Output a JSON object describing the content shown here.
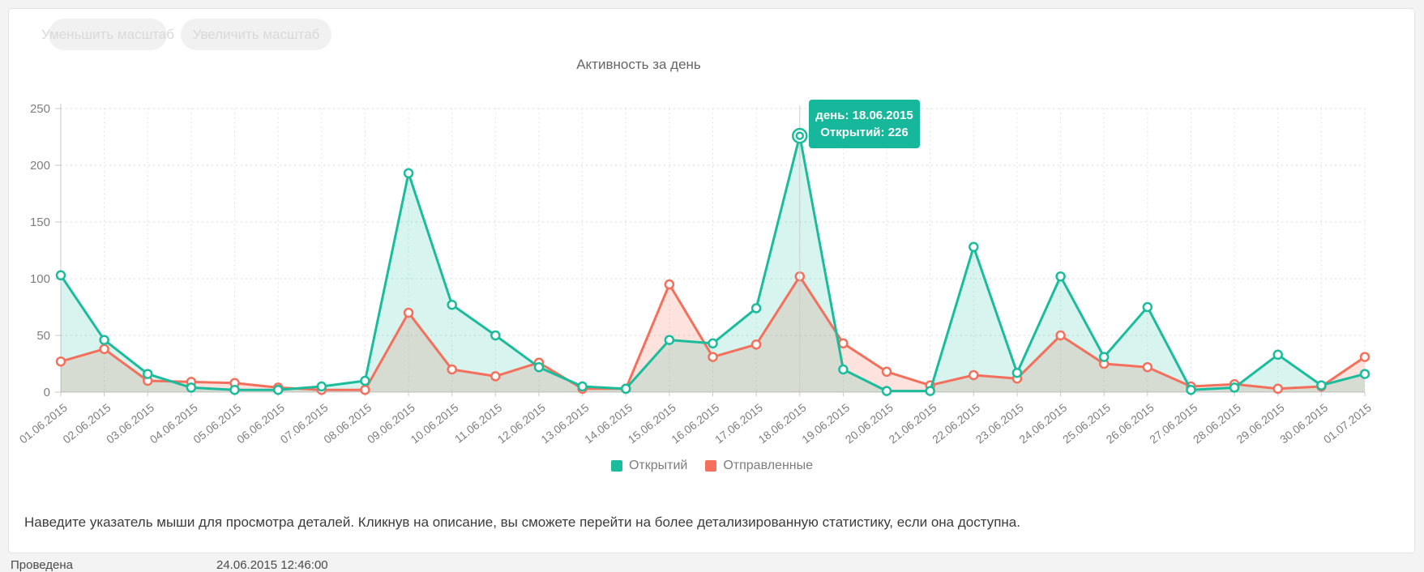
{
  "buttons": {
    "zoom_out": "Уменьшить масштаб",
    "zoom_in": "Увеличить масштаб"
  },
  "chart_data": {
    "type": "line",
    "title": "Активность за день",
    "categories": [
      "01.06.2015",
      "02.06.2015",
      "03.06.2015",
      "04.06.2015",
      "05.06.2015",
      "06.06.2015",
      "07.06.2015",
      "08.06.2015",
      "09.06.2015",
      "10.06.2015",
      "11.06.2015",
      "12.06.2015",
      "13.06.2015",
      "14.06.2015",
      "15.06.2015",
      "16.06.2015",
      "17.06.2015",
      "18.06.2015",
      "19.06.2015",
      "20.06.2015",
      "21.06.2015",
      "22.06.2015",
      "23.06.2015",
      "24.06.2015",
      "25.06.2015",
      "26.06.2015",
      "27.06.2015",
      "28.06.2015",
      "29.06.2015",
      "30.06.2015",
      "01.07.2015"
    ],
    "series": [
      {
        "name": "Открытий",
        "color": "#1abc9c",
        "fill": "rgba(26,188,156,0.17)",
        "values": [
          103,
          46,
          16,
          4,
          2,
          2,
          5,
          10,
          193,
          77,
          50,
          22,
          5,
          3,
          46,
          43,
          74,
          226,
          20,
          1,
          1,
          128,
          17,
          102,
          31,
          75,
          2,
          4,
          33,
          6,
          16
        ]
      },
      {
        "name": "Отправленные",
        "color": "#f4705c",
        "fill": "rgba(244,112,92,0.20)",
        "values": [
          27,
          38,
          10,
          9,
          8,
          4,
          2,
          2,
          70,
          20,
          14,
          26,
          3,
          3,
          95,
          31,
          42,
          102,
          43,
          18,
          6,
          15,
          12,
          50,
          25,
          22,
          5,
          7,
          3,
          5,
          31
        ]
      }
    ],
    "yticks": [
      0,
      50,
      100,
      150,
      200,
      250
    ],
    "ylim": [
      0,
      250
    ],
    "grid": "dotted",
    "legend_position": "bottom",
    "xlabel": "",
    "ylabel": ""
  },
  "hover": {
    "category": "18.06.2015",
    "series": "Открытий",
    "value": 226
  },
  "tooltip": {
    "line1": "день: 18.06.2015",
    "line2": "Открытий: 226",
    "bg": "#16b79a"
  },
  "hint": "Наведите указатель мыши для просмотра деталей. Кликнув на описание, вы сможете перейти на более детализированную статистику, если она доступна.",
  "footer_partial": {
    "label": "Проведена",
    "datetime": "24.06.2015 12:46:00"
  }
}
